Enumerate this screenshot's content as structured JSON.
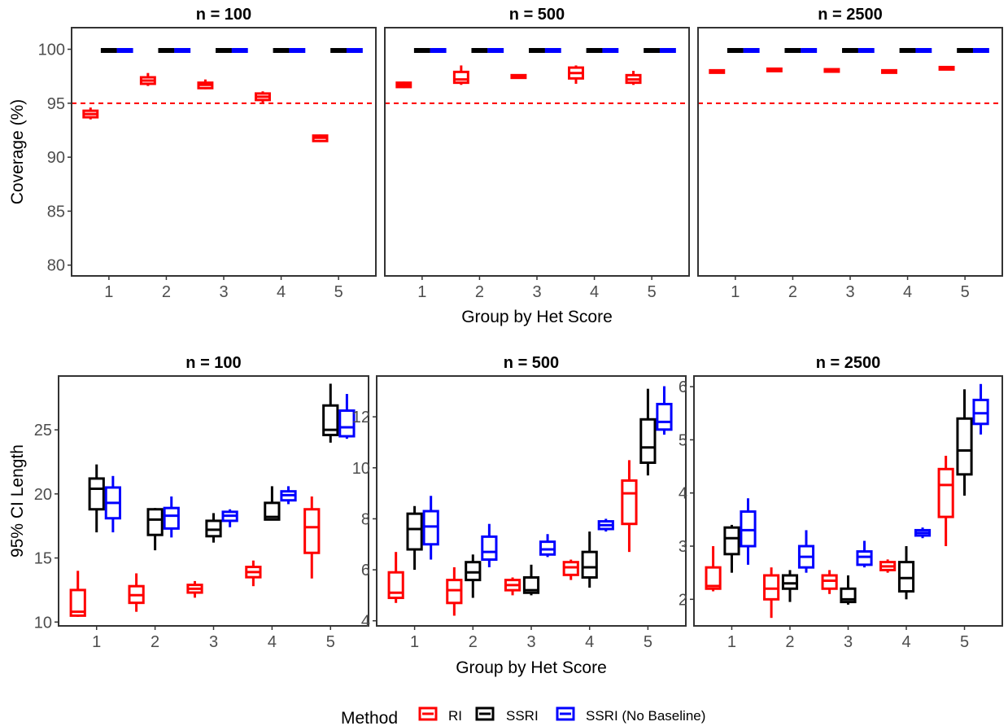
{
  "chart_data": [
    {
      "type": "boxplot",
      "title": "n = 100",
      "xlabel": "",
      "ylabel": "Coverage (%)",
      "categories": [
        "1",
        "2",
        "3",
        "4",
        "5"
      ],
      "ylim": [
        79,
        102
      ],
      "yticks": [
        "80",
        "85",
        "90",
        "95",
        "100"
      ],
      "reference_line": {
        "y": 95,
        "color": "#ff0000",
        "style": "dashed"
      },
      "series": [
        {
          "name": "RI",
          "boxes": [
            [
              93.5,
              93.7,
              94.0,
              94.3,
              94.6
            ],
            [
              96.6,
              96.8,
              97.1,
              97.4,
              97.8
            ],
            [
              96.3,
              96.4,
              96.7,
              96.9,
              97.2
            ],
            [
              95.0,
              95.3,
              95.6,
              95.9,
              96.1
            ],
            [
              91.4,
              91.5,
              91.8,
              92.0,
              92.1
            ]
          ]
        },
        {
          "name": "SSRI",
          "boxes": [
            [
              100,
              100,
              100,
              100,
              100
            ],
            [
              100,
              100,
              100,
              100,
              100
            ],
            [
              100,
              100,
              100,
              100,
              100
            ],
            [
              100,
              100,
              100,
              100,
              100
            ],
            [
              99.8,
              99.85,
              99.9,
              100,
              100
            ]
          ]
        },
        {
          "name": "SSRI (No Baseline)",
          "boxes": [
            [
              100,
              100,
              100,
              100,
              100
            ],
            [
              100,
              100,
              100,
              100,
              100
            ],
            [
              100,
              100,
              100,
              100,
              100
            ],
            [
              100,
              100,
              100,
              100,
              100
            ],
            [
              99.8,
              99.85,
              99.9,
              100,
              100
            ]
          ]
        }
      ]
    },
    {
      "type": "boxplot",
      "title": "n = 500",
      "xlabel": "Group by Het Score",
      "ylabel": "",
      "categories": [
        "1",
        "2",
        "3",
        "4",
        "5"
      ],
      "ylim": [
        79,
        102
      ],
      "yticks": [],
      "reference_line": {
        "y": 95,
        "color": "#ff0000",
        "style": "dashed"
      },
      "series": [
        {
          "name": "RI",
          "boxes": [
            [
              96.4,
              96.5,
              96.7,
              96.9,
              97.0
            ],
            [
              96.7,
              96.9,
              97.2,
              97.9,
              98.5
            ],
            [
              97.3,
              97.35,
              97.5,
              97.6,
              97.7
            ],
            [
              96.8,
              97.3,
              97.8,
              98.3,
              98.5
            ],
            [
              96.7,
              96.9,
              97.2,
              97.6,
              98.0
            ]
          ]
        },
        {
          "name": "SSRI",
          "boxes": [
            [
              100,
              100,
              100,
              100,
              100
            ],
            [
              100,
              100,
              100,
              100,
              100
            ],
            [
              100,
              100,
              100,
              100,
              100
            ],
            [
              100,
              100,
              100,
              100,
              100
            ],
            [
              99.8,
              99.85,
              99.9,
              100,
              100
            ]
          ]
        },
        {
          "name": "SSRI (No Baseline)",
          "boxes": [
            [
              100,
              100,
              100,
              100,
              100
            ],
            [
              100,
              100,
              100,
              100,
              100
            ],
            [
              100,
              100,
              100,
              100,
              100
            ],
            [
              100,
              100,
              100,
              100,
              100
            ],
            [
              99.8,
              99.85,
              100,
              100,
              100
            ]
          ]
        }
      ]
    },
    {
      "type": "boxplot",
      "title": "n = 2500",
      "xlabel": "",
      "ylabel": "",
      "categories": [
        "1",
        "2",
        "3",
        "4",
        "5"
      ],
      "ylim": [
        79,
        102
      ],
      "yticks": [],
      "reference_line": {
        "y": 95,
        "color": "#ff0000",
        "style": "dashed"
      },
      "series": [
        {
          "name": "RI",
          "boxes": [
            [
              97.8,
              97.85,
              97.95,
              98.05,
              98.1
            ],
            [
              97.95,
              98.0,
              98.1,
              98.2,
              98.25
            ],
            [
              97.9,
              97.95,
              98.05,
              98.15,
              98.2
            ],
            [
              97.8,
              97.85,
              97.95,
              98.05,
              98.1
            ],
            [
              98.1,
              98.15,
              98.25,
              98.35,
              98.4
            ]
          ]
        },
        {
          "name": "SSRI",
          "boxes": [
            [
              100,
              100,
              100,
              100,
              100
            ],
            [
              100,
              100,
              100,
              100,
              100
            ],
            [
              100,
              100,
              100,
              100,
              100
            ],
            [
              100,
              100,
              100,
              100,
              100
            ],
            [
              100,
              100,
              100,
              100,
              100
            ]
          ]
        },
        {
          "name": "SSRI (No Baseline)",
          "boxes": [
            [
              100,
              100,
              100,
              100,
              100
            ],
            [
              100,
              100,
              100,
              100,
              100
            ],
            [
              100,
              100,
              100,
              100,
              100
            ],
            [
              100,
              100,
              100,
              100,
              100
            ],
            [
              100,
              100,
              100,
              100,
              100
            ]
          ]
        }
      ]
    },
    {
      "type": "boxplot",
      "title": "n = 100",
      "xlabel": "",
      "ylabel": "95% CI Length",
      "categories": [
        "1",
        "2",
        "3",
        "4",
        "5"
      ],
      "ylim": [
        9.7,
        29.2
      ],
      "yticks": [
        "10",
        "15",
        "20",
        "25"
      ],
      "series": [
        {
          "name": "RI",
          "boxes": [
            [
              10.4,
              10.5,
              10.8,
              12.5,
              14.0
            ],
            [
              10.8,
              11.5,
              12.1,
              12.8,
              13.8
            ],
            [
              11.9,
              12.3,
              12.6,
              12.9,
              13.2
            ],
            [
              12.8,
              13.5,
              13.9,
              14.3,
              14.8
            ],
            [
              13.4,
              15.4,
              17.4,
              18.8,
              19.8
            ]
          ]
        },
        {
          "name": "SSRI",
          "boxes": [
            [
              17.0,
              18.8,
              20.4,
              21.2,
              22.3
            ],
            [
              15.6,
              16.8,
              18.0,
              18.8,
              18.9
            ],
            [
              16.2,
              16.7,
              17.2,
              17.9,
              18.5
            ],
            [
              18.0,
              18.0,
              18.2,
              19.3,
              20.6
            ],
            [
              24.0,
              24.6,
              25.0,
              26.9,
              28.6
            ]
          ]
        },
        {
          "name": "SSRI (No Baseline)",
          "boxes": [
            [
              17.0,
              18.1,
              19.3,
              20.5,
              21.4
            ],
            [
              16.6,
              17.3,
              18.3,
              18.9,
              19.8
            ],
            [
              17.4,
              17.9,
              18.3,
              18.6,
              18.8
            ],
            [
              19.2,
              19.5,
              19.9,
              20.2,
              20.6
            ],
            [
              24.3,
              24.5,
              25.2,
              26.5,
              27.8
            ]
          ]
        }
      ]
    },
    {
      "type": "boxplot",
      "title": "n = 500",
      "xlabel": "Group by Het Score",
      "ylabel": "",
      "categories": [
        "1",
        "2",
        "3",
        "4",
        "5"
      ],
      "ylim": [
        3.8,
        13.6
      ],
      "yticks": [
        "4",
        "6",
        "8",
        "10",
        "12"
      ],
      "series": [
        {
          "name": "RI",
          "boxes": [
            [
              4.7,
              4.9,
              5.1,
              5.9,
              6.7
            ],
            [
              4.2,
              4.7,
              5.2,
              5.6,
              6.1
            ],
            [
              5.0,
              5.2,
              5.4,
              5.6,
              5.7
            ],
            [
              5.6,
              5.8,
              6.1,
              6.3,
              6.4
            ],
            [
              6.7,
              7.8,
              9.0,
              9.5,
              10.3
            ]
          ]
        },
        {
          "name": "SSRI",
          "boxes": [
            [
              6.0,
              6.8,
              7.6,
              8.2,
              8.5
            ],
            [
              4.9,
              5.6,
              5.9,
              6.3,
              6.6
            ],
            [
              5.0,
              5.1,
              5.2,
              5.7,
              6.2
            ],
            [
              5.3,
              5.7,
              6.1,
              6.7,
              7.5
            ],
            [
              9.7,
              10.2,
              10.8,
              11.9,
              13.1
            ]
          ]
        },
        {
          "name": "SSRI (No Baseline)",
          "boxes": [
            [
              6.4,
              7.0,
              7.7,
              8.3,
              8.9
            ],
            [
              6.1,
              6.4,
              6.7,
              7.3,
              7.8
            ],
            [
              6.5,
              6.6,
              6.8,
              7.1,
              7.4
            ],
            [
              7.5,
              7.6,
              7.75,
              7.9,
              8.0
            ],
            [
              11.3,
              11.5,
              11.8,
              12.5,
              13.2
            ]
          ]
        }
      ]
    },
    {
      "type": "boxplot",
      "title": "n = 2500",
      "xlabel": "",
      "ylabel": "",
      "categories": [
        "1",
        "2",
        "3",
        "4",
        "5"
      ],
      "ylim": [
        1.5,
        6.2
      ],
      "yticks": [
        "2",
        "3",
        "4",
        "5",
        "6"
      ],
      "series": [
        {
          "name": "RI",
          "boxes": [
            [
              2.15,
              2.2,
              2.25,
              2.6,
              3.0
            ],
            [
              1.65,
              2.0,
              2.2,
              2.45,
              2.6
            ],
            [
              2.1,
              2.2,
              2.35,
              2.45,
              2.55
            ],
            [
              2.5,
              2.55,
              2.62,
              2.7,
              2.75
            ],
            [
              3.0,
              3.55,
              4.15,
              4.45,
              4.7
            ]
          ]
        },
        {
          "name": "SSRI",
          "boxes": [
            [
              2.5,
              2.85,
              3.15,
              3.35,
              3.4
            ],
            [
              1.95,
              2.2,
              2.3,
              2.45,
              2.55
            ],
            [
              1.9,
              1.95,
              2.0,
              2.2,
              2.45
            ],
            [
              2.0,
              2.15,
              2.4,
              2.7,
              3.0
            ],
            [
              3.95,
              4.35,
              4.8,
              5.4,
              5.95
            ]
          ]
        },
        {
          "name": "SSRI (No Baseline)",
          "boxes": [
            [
              2.65,
              3.0,
              3.3,
              3.65,
              3.9
            ],
            [
              2.5,
              2.6,
              2.8,
              3.0,
              3.3
            ],
            [
              2.6,
              2.65,
              2.8,
              2.9,
              3.1
            ],
            [
              3.15,
              3.2,
              3.25,
              3.3,
              3.35
            ],
            [
              5.1,
              5.3,
              5.5,
              5.75,
              6.05
            ]
          ]
        }
      ]
    }
  ],
  "legend": {
    "title": "Method",
    "entries": [
      {
        "label": "RI",
        "color": "#ff0000"
      },
      {
        "label": "SSRI",
        "color": "#000000"
      },
      {
        "label": "SSRI (No Baseline)",
        "color": "#0000ff"
      }
    ],
    "placement": "bottom"
  }
}
